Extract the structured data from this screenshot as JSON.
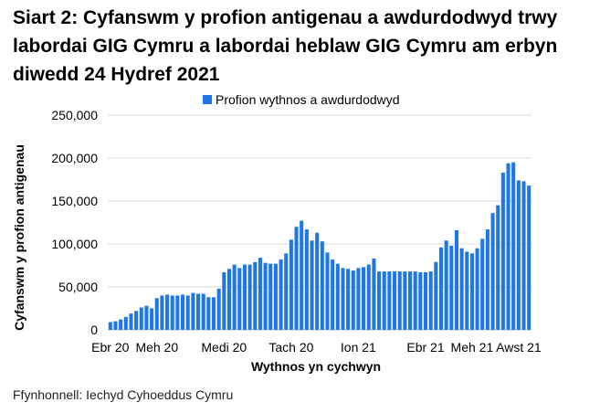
{
  "title": "Siart 2: Cyfanswm y profion antigenau a awdurdodwyd trwy labordai GIG Cymru a labordai heblaw GIG Cymru am erbyn diwedd 24 Hydref 2021",
  "source": "Ffynhonnell: Iechyd Cyhoeddus Cymru",
  "chart_data": {
    "type": "bar",
    "title": "Siart 2: Cyfanswm y profion antigenau a awdurdodwyd trwy labordai GIG Cymru a labordai heblaw GIG Cymru am erbyn diwedd 24 Hydref 2021",
    "xlabel": "Wythnos yn cychwyn",
    "ylabel": "Cyfanswm y profion antigenau",
    "ylim": [
      0,
      250000
    ],
    "yticks": [
      0,
      50000,
      100000,
      150000,
      200000,
      250000
    ],
    "ytick_labels": [
      "0",
      "50,000",
      "100,000",
      "150,000",
      "200,000",
      "250,000"
    ],
    "xtick_labels": [
      {
        "label": "Ebr 20",
        "index": 0
      },
      {
        "label": "Meh 20",
        "index": 9
      },
      {
        "label": "Medi 20",
        "index": 22
      },
      {
        "label": "Tach 20",
        "index": 35
      },
      {
        "label": "Ion 21",
        "index": 48
      },
      {
        "label": "Ebr 21",
        "index": 61
      },
      {
        "label": "Meh 21",
        "index": 70
      },
      {
        "label": "Awst 21",
        "index": 79
      }
    ],
    "legend": {
      "position": "top",
      "entries": [
        "Profion wythnos a awdurdodwyd"
      ]
    },
    "grid": "horizontal",
    "color": "#1f77e6",
    "series": [
      {
        "name": "Profion wythnos a awdurdodwyd",
        "values": [
          9000,
          10000,
          12000,
          15000,
          19000,
          22000,
          26000,
          28000,
          25000,
          37000,
          40000,
          41000,
          40000,
          40000,
          41000,
          40000,
          43000,
          42000,
          42000,
          38000,
          38000,
          48000,
          67000,
          71000,
          76000,
          72000,
          76000,
          76000,
          79000,
          84000,
          78000,
          77000,
          77000,
          82000,
          89000,
          105000,
          120000,
          127000,
          117000,
          104000,
          113000,
          103000,
          90000,
          82000,
          77000,
          72000,
          71000,
          69000,
          72000,
          73000,
          76000,
          83000,
          68000,
          68000,
          68000,
          68000,
          68000,
          68000,
          68000,
          68000,
          67000,
          67000,
          68000,
          79000,
          96000,
          104000,
          98000,
          116000,
          95000,
          91000,
          89000,
          95000,
          106000,
          117000,
          136000,
          145000,
          183000,
          194000,
          195000,
          174000,
          173000,
          168000
        ]
      }
    ]
  }
}
